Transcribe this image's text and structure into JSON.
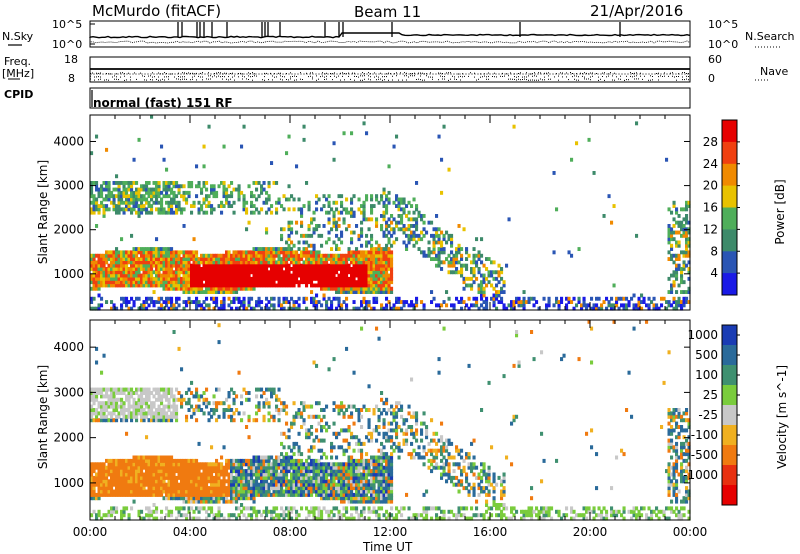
{
  "header": {
    "radar": "McMurdo (fitACF)",
    "beam": "Beam 11",
    "date": "21/Apr/2016"
  },
  "side_labels": {
    "n_sky": "N.Sky",
    "freq": "Freq.",
    "freq_unit": "[MHz]",
    "cpid": "CPID",
    "n_search": "N.Search",
    "nave": "Nave"
  },
  "cpid_text": "normal (fast) 151 RF",
  "noise_panel": {
    "left_ticks": [
      "10^5",
      "10^0"
    ],
    "right_ticks": [
      "10^5",
      "10^0"
    ]
  },
  "freq_panel": {
    "left_ticks": [
      "18",
      "8"
    ],
    "right_ticks": [
      "60",
      "0"
    ]
  },
  "chart_data": [
    {
      "type": "heatmap",
      "title": "",
      "ylabel": "Slant Range [km]",
      "xlabel": "",
      "ylim": [
        180,
        4600
      ],
      "xlim": [
        "00:00",
        "24:00"
      ],
      "y_ticks": [
        "1000",
        "2000",
        "3000",
        "4000"
      ],
      "colorbar_label": "Power [dB]",
      "colorbar_ticks": [
        "4",
        "8",
        "12",
        "16",
        "20",
        "24",
        "28"
      ],
      "colorscale": [
        "#1a1ae6",
        "#2a55b4",
        "#3d8a6a",
        "#4fae5a",
        "#e8c200",
        "#f08a00",
        "#f04010",
        "#e60000"
      ]
    },
    {
      "type": "heatmap",
      "title": "",
      "ylabel": "Slant Range [km]",
      "xlabel": "Time UT",
      "ylim": [
        180,
        4600
      ],
      "xlim": [
        "00:00",
        "24:00"
      ],
      "y_ticks": [
        "1000",
        "2000",
        "3000",
        "4000"
      ],
      "x_ticks": [
        "00:00",
        "04:00",
        "08:00",
        "12:00",
        "16:00",
        "20:00",
        "00:00"
      ],
      "colorbar_label": "Velocity [m s^-1]",
      "colorbar_ticks": [
        "1000",
        "500",
        "100",
        "25",
        "-25",
        "-100",
        "-500",
        "-1000"
      ],
      "colorscale": [
        "#1a3cb4",
        "#2a6a9a",
        "#3f9070",
        "#7acc3c",
        "#c8c8c8",
        "#f0b020",
        "#f07a10",
        "#e83010",
        "#e60000"
      ]
    }
  ]
}
